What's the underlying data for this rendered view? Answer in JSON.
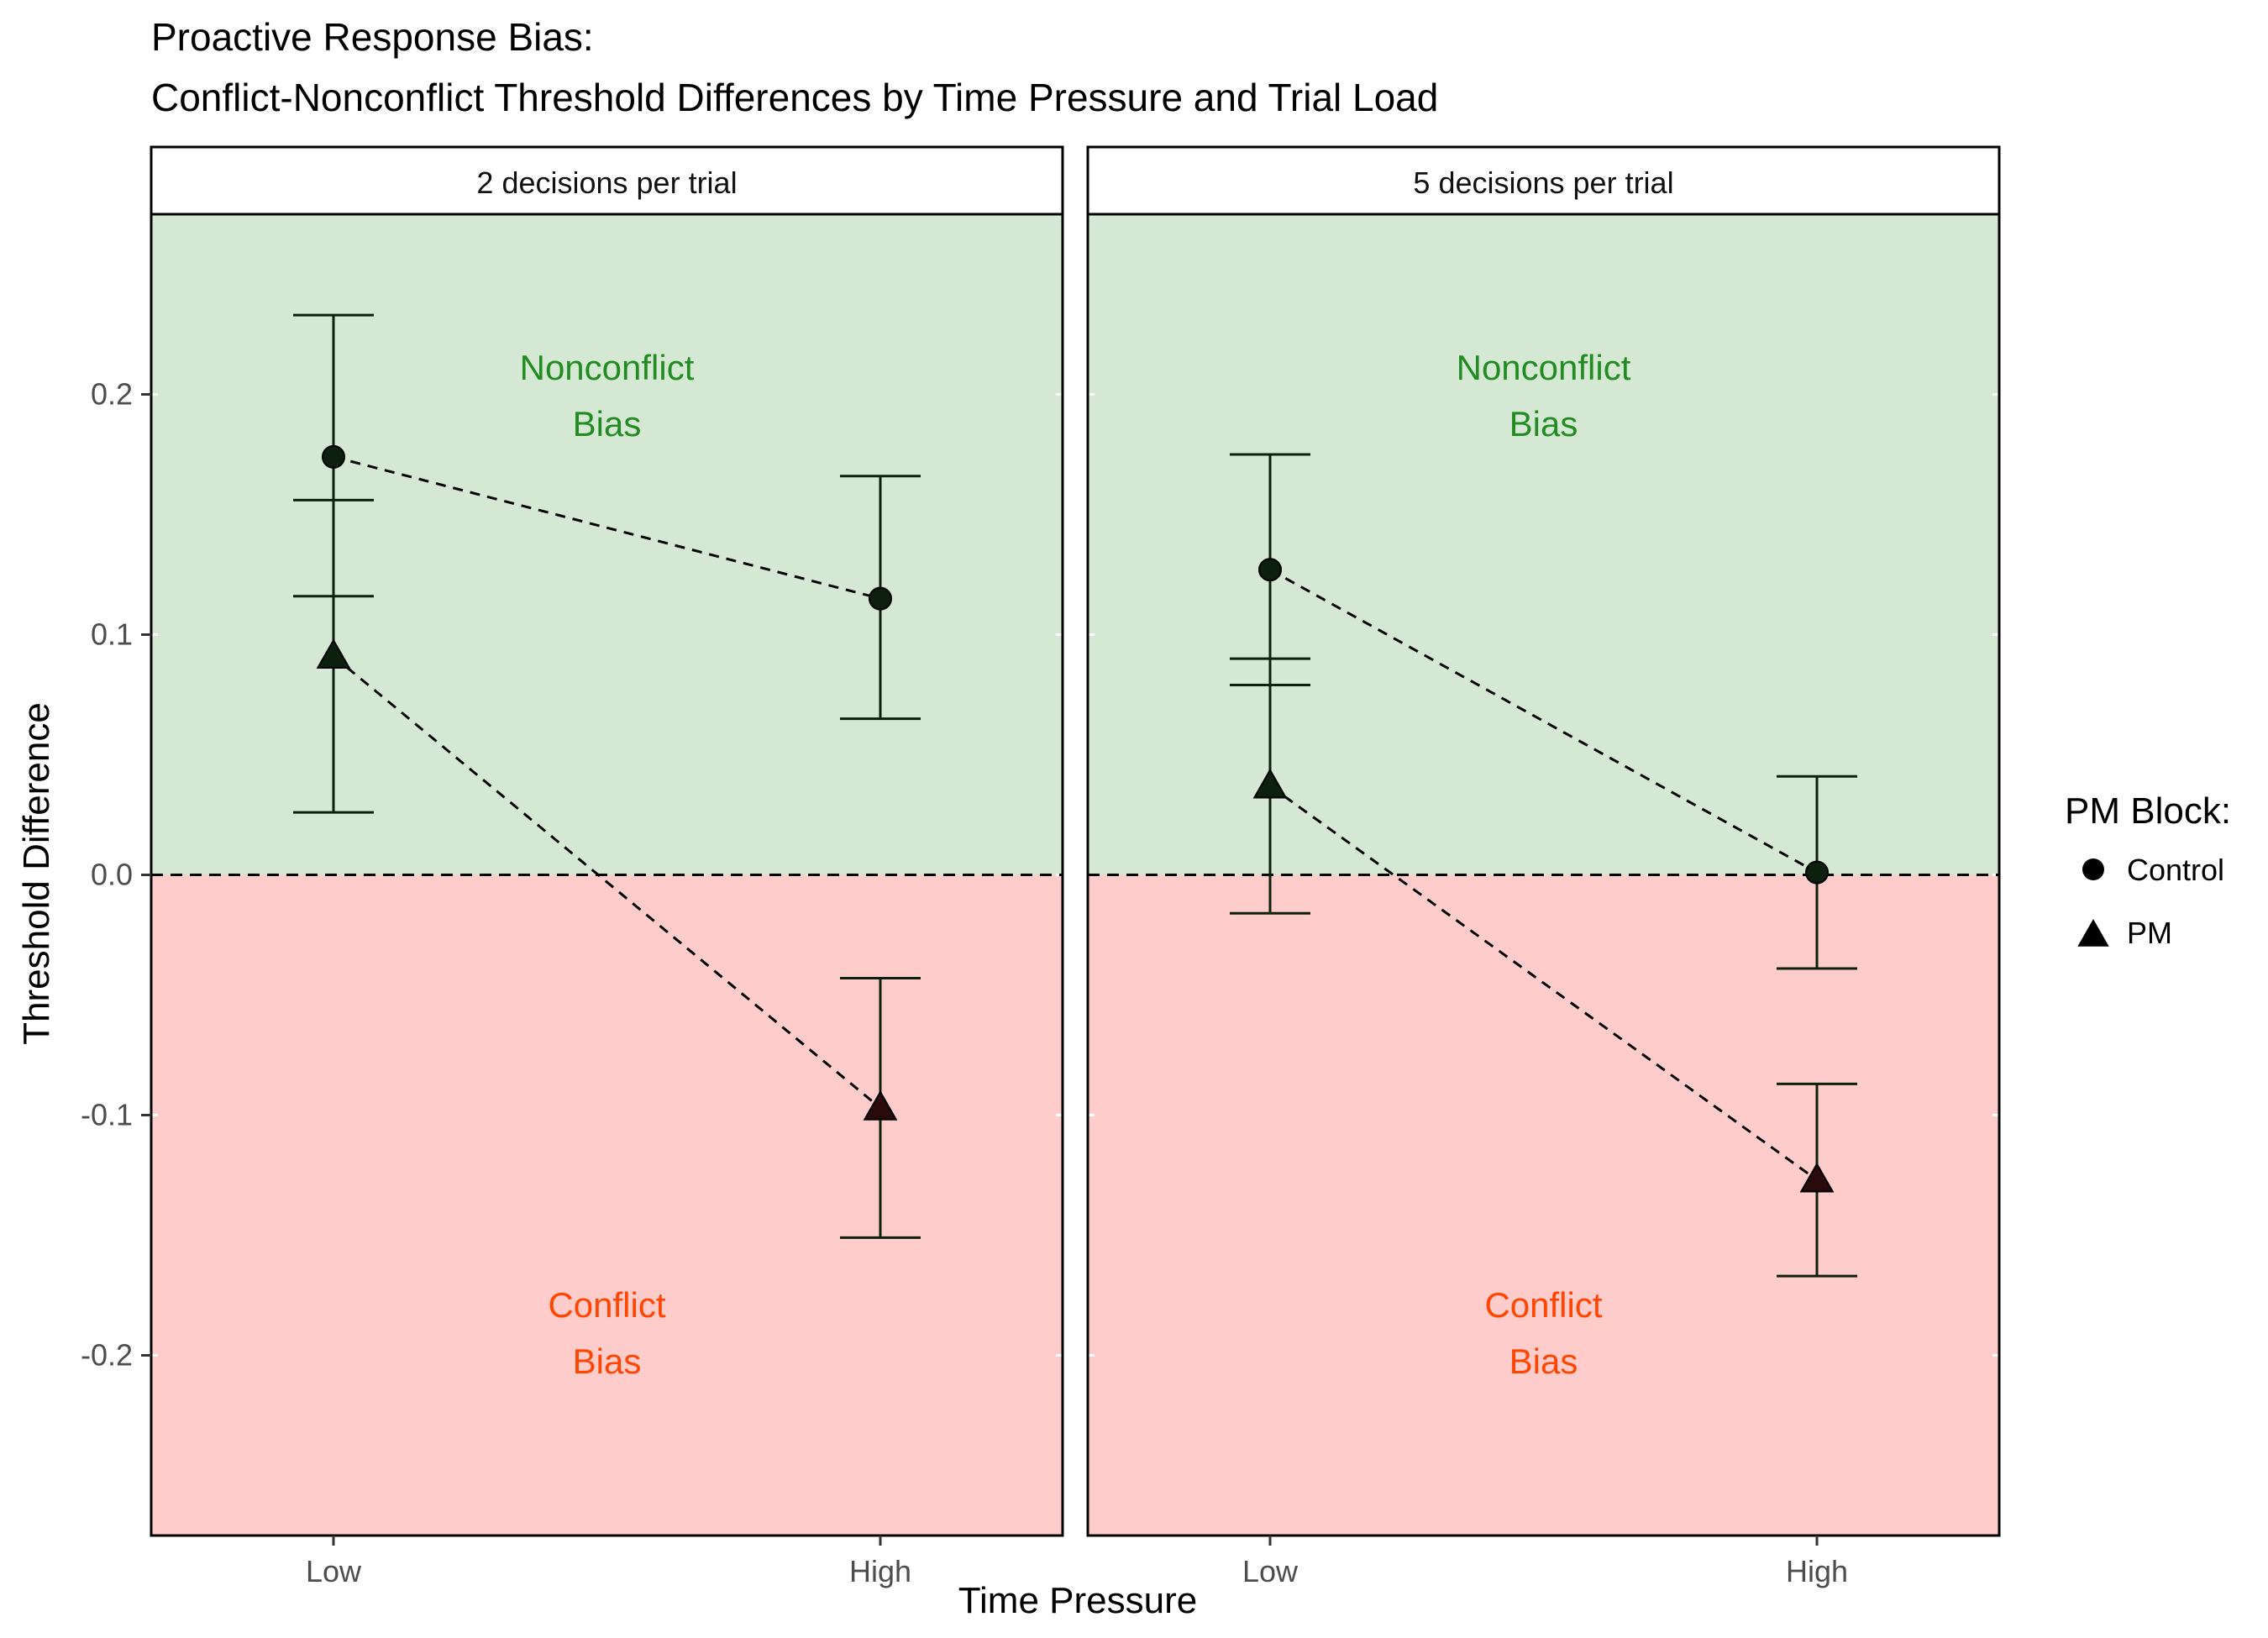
{
  "title_line1": "Proactive Response Bias:",
  "title_line2": "Conflict-Nonconflict Threshold Differences by Time Pressure and Trial Load",
  "colors": {
    "nonconflict_fill": "#d5e8d4",
    "conflict_fill": "#ffcccc",
    "nonconflict_text": "#228b22",
    "conflict_text": "#ff4500",
    "mark": "#0d1f0d"
  },
  "region_labels": {
    "nonconflict": [
      "Nonconflict",
      "Bias"
    ],
    "conflict": [
      "Conflict",
      "Bias"
    ]
  },
  "chart_data": {
    "type": "scatter",
    "title": "Proactive Response Bias: Conflict-Nonconflict Threshold Differences by Time Pressure and Trial Load",
    "xlabel": "Time Pressure",
    "ylabel": "Threshold Difference",
    "categories": [
      "Low",
      "High"
    ],
    "ylim": [
      -0.275,
      0.275
    ],
    "yticks": [
      -0.2,
      -0.1,
      0.0,
      0.1,
      0.2
    ],
    "ytick_labels": [
      "-0.2",
      "-0.1",
      "0.0",
      "0.1",
      "0.2"
    ],
    "reference_line": 0,
    "grid": false,
    "legend": {
      "title": "PM Block:",
      "position": "right",
      "entries": [
        {
          "label": "Control",
          "shape": "circle"
        },
        {
          "label": "PM",
          "shape": "triangle"
        }
      ]
    },
    "panels": [
      {
        "label": "2 decisions per trial",
        "series": [
          {
            "name": "Control",
            "shape": "circle",
            "values": [
              0.174,
              0.115
            ],
            "lower": [
              0.116,
              0.065
            ],
            "upper": [
              0.233,
              0.166
            ]
          },
          {
            "name": "PM",
            "shape": "triangle",
            "values": [
              0.091,
              -0.097
            ],
            "lower": [
              0.026,
              -0.151
            ],
            "upper": [
              0.156,
              -0.043
            ]
          }
        ]
      },
      {
        "label": "5 decisions per trial",
        "series": [
          {
            "name": "Control",
            "shape": "circle",
            "values": [
              0.127,
              0.001
            ],
            "lower": [
              0.079,
              -0.039
            ],
            "upper": [
              0.175,
              0.041
            ]
          },
          {
            "name": "PM",
            "shape": "triangle",
            "values": [
              0.037,
              -0.127
            ],
            "lower": [
              -0.016,
              -0.167
            ],
            "upper": [
              0.09,
              -0.087
            ]
          }
        ]
      }
    ]
  }
}
